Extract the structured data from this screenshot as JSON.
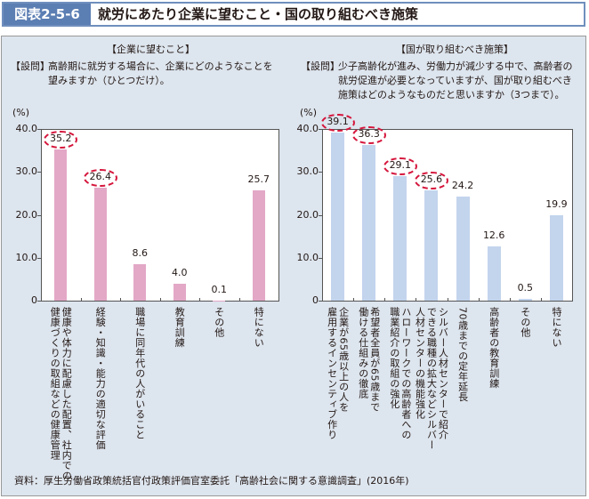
{
  "header": {
    "number": "図表2-5-6",
    "title": "就労にあたり企業に望むこと・国の取り組むべき施策"
  },
  "source": "資料：厚生労働省政策統括官付政策評価官室委託「高齢社会に関する意識調査」(2016年)",
  "colors": {
    "left_bar": "#e3a8c6",
    "right_bar": "#c3d4ed",
    "highlight": "#d5163c",
    "header": "#5b7eb3"
  },
  "chart_data": [
    {
      "type": "bar",
      "title": "【企業に望むこと】",
      "question_tag": "【設問】",
      "question": "高齢期に就労する場合に、企業にどのようなことを\n望みますか（ひとつだけ）。",
      "ylabel": "(%)",
      "ylim": [
        0,
        40
      ],
      "yticks": [
        "0",
        "10.0",
        "20.0",
        "30.0",
        "40.0"
      ],
      "categories": [
        "健康や体力に配慮した配置、社内での\n健康づくりの取組などの健康管理",
        "経験・知識・能力の適切な評価",
        "職場に同年代の人がいること",
        "教育訓練",
        "その他",
        "特にない"
      ],
      "values": [
        35.2,
        26.4,
        8.6,
        4.0,
        0.1,
        25.7
      ],
      "labels": [
        "35.2",
        "26.4",
        "8.6",
        "4.0",
        "0.1",
        "25.7"
      ],
      "highlighted": [
        true,
        true,
        false,
        false,
        false,
        false
      ]
    },
    {
      "type": "bar",
      "title": "【国が取り組むべき施策】",
      "question_tag": "【設問】",
      "question": "少子高齢化が進み、労働力が減少する中で、高齢者の\n就労促進が必要となっていますが、国が取り組むべき\n施策はどのようなものだと思いますか（3つまで）。",
      "ylabel": "(%)",
      "ylim": [
        0,
        40
      ],
      "yticks": [
        "0",
        "10.0",
        "20.0",
        "30.0",
        "40.0"
      ],
      "categories": [
        "企業が65歳以上の人を\n雇用するインセンティブ作り",
        "希望者全員が65歳まで\n働ける仕組みの徹底",
        "ハローワークでの高齢者への\n職業紹介の取組の強化",
        "シルバー人材センターで紹介\nできる職種の拡大などシルバー\n人材センターの機能強化",
        "70歳までの定年延長",
        "高齢者の教育訓練",
        "その他",
        "特にない"
      ],
      "values": [
        39.1,
        36.3,
        29.1,
        25.6,
        24.2,
        12.6,
        0.5,
        19.9
      ],
      "labels": [
        "39.1",
        "36.3",
        "29.1",
        "25.6",
        "24.2",
        "12.6",
        "0.5",
        "19.9"
      ],
      "highlighted": [
        true,
        true,
        true,
        true,
        false,
        false,
        false,
        false
      ]
    }
  ]
}
